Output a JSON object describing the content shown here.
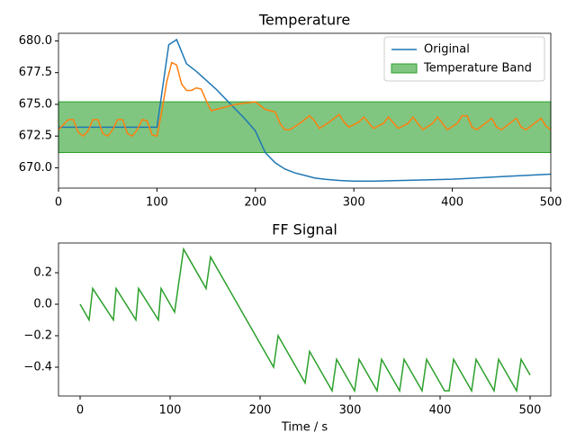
{
  "chart_data": [
    {
      "type": "line",
      "title": "Temperature",
      "xlim": [
        0,
        500
      ],
      "xticks": [
        0,
        100,
        200,
        300,
        400,
        500
      ],
      "ylim": [
        668.4,
        680.6
      ],
      "yticks": [
        {
          "value": 670,
          "label": "670.0"
        },
        672.5,
        {
          "value": 675,
          "label": "675.0"
        },
        677.5,
        {
          "value": 680,
          "label": "680.0"
        }
      ],
      "grid": false,
      "legend": "upper right",
      "band": {
        "name": "Temperature Band",
        "range": [
          671.2,
          675.2
        ],
        "color": "#2ca02c",
        "alpha": 0.6
      },
      "series": [
        {
          "name": "Original",
          "color": "#1f77b4",
          "x": [
            0,
            100,
            112,
            120,
            130,
            140,
            150,
            160,
            170,
            180,
            190,
            200,
            210,
            220,
            230,
            240,
            250,
            260,
            270,
            285,
            300,
            320,
            350,
            400,
            450,
            500
          ],
          "values": [
            673.2,
            673.2,
            679.7,
            680.1,
            678.2,
            677.6,
            676.9,
            676.2,
            675.4,
            674.6,
            673.8,
            672.9,
            671.2,
            670.4,
            669.9,
            669.6,
            669.4,
            669.2,
            669.1,
            669.0,
            668.95,
            668.95,
            669.0,
            669.1,
            669.3,
            669.5
          ]
        },
        {
          "color": "#ff7f0e",
          "x": [
            0,
            5,
            10,
            15,
            20,
            25,
            30,
            35,
            40,
            45,
            50,
            55,
            60,
            65,
            70,
            75,
            80,
            85,
            90,
            95,
            100,
            105,
            110,
            115,
            120,
            125,
            130,
            135,
            140,
            145,
            150,
            155,
            160,
            170,
            180,
            190,
            200,
            205,
            210,
            220,
            225,
            230,
            235,
            245,
            255,
            260,
            265,
            275,
            285,
            290,
            295,
            305,
            310,
            320,
            330,
            335,
            345,
            355,
            360,
            370,
            380,
            385,
            395,
            405,
            410,
            415,
            420,
            425,
            435,
            440,
            445,
            450,
            460,
            465,
            470,
            475,
            485,
            490,
            495,
            500
          ],
          "values": [
            673.0,
            673.4,
            673.8,
            673.8,
            672.8,
            672.5,
            672.9,
            673.8,
            673.8,
            672.7,
            672.5,
            673.0,
            673.8,
            673.8,
            672.7,
            672.5,
            673.0,
            673.8,
            673.7,
            672.6,
            672.5,
            674.5,
            676.8,
            678.3,
            678.1,
            676.6,
            676.1,
            676.1,
            676.3,
            676.2,
            675.3,
            674.5,
            674.6,
            674.8,
            675.0,
            675.1,
            675.2,
            674.9,
            674.6,
            674.4,
            673.5,
            673.0,
            673.0,
            673.5,
            674.1,
            673.7,
            673.1,
            673.6,
            674.2,
            673.6,
            673.2,
            673.6,
            674.0,
            673.1,
            673.5,
            674.0,
            673.1,
            673.5,
            674.0,
            673.0,
            673.5,
            674.0,
            673.0,
            673.5,
            674.1,
            674.1,
            673.2,
            673.0,
            673.6,
            673.9,
            673.2,
            673.0,
            673.6,
            673.9,
            673.2,
            673.0,
            673.6,
            673.9,
            673.3,
            673.0
          ]
        }
      ]
    },
    {
      "type": "line",
      "title": "FF Signal",
      "x_label": "Time / s",
      "xlim": [
        -24,
        523
      ],
      "xticks": [
        0,
        100,
        200,
        300,
        400,
        500
      ],
      "ylim": [
        -0.583,
        0.389
      ],
      "yticks": [
        {
          "value": -0.4,
          "label": "−0.4"
        },
        {
          "value": -0.2,
          "label": "−0.2"
        },
        {
          "value": 0,
          "label": "0.0"
        },
        0.2
      ],
      "grid": false,
      "series": [
        {
          "color": "#2ca02c",
          "x": [
            0,
            10,
            14,
            37,
            40,
            62,
            65,
            87,
            90,
            105,
            115,
            140,
            145,
            215,
            220,
            250,
            255,
            280,
            285,
            305,
            310,
            330,
            335,
            355,
            360,
            380,
            385,
            405,
            410,
            415,
            435,
            440,
            460,
            465,
            485,
            490,
            500
          ],
          "values": [
            0,
            -0.1,
            0.1,
            -0.1,
            0.1,
            -0.1,
            0.1,
            -0.1,
            0.1,
            -0.05,
            0.35,
            0.1,
            0.3,
            -0.4,
            -0.2,
            -0.5,
            -0.3,
            -0.55,
            -0.35,
            -0.55,
            -0.35,
            -0.55,
            -0.35,
            -0.55,
            -0.35,
            -0.55,
            -0.35,
            -0.55,
            -0.55,
            -0.35,
            -0.55,
            -0.35,
            -0.55,
            -0.35,
            -0.55,
            -0.35,
            -0.45
          ]
        }
      ]
    }
  ]
}
